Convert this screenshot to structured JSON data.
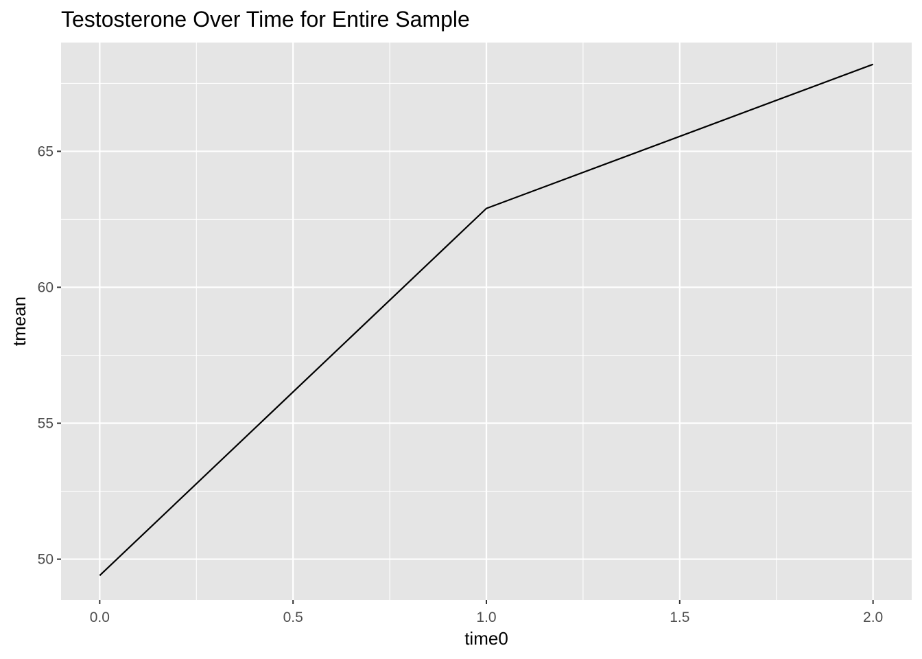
{
  "chart_data": {
    "type": "line",
    "title": "Testosterone Over Time for Entire Sample",
    "xlabel": "time0",
    "ylabel": "tmean",
    "x": [
      0.0,
      1.0,
      2.0
    ],
    "series": [
      {
        "name": "tmean",
        "values": [
          49.4,
          62.9,
          68.2
        ]
      }
    ],
    "xlim": [
      -0.1,
      2.1
    ],
    "ylim": [
      48.5,
      69.0
    ],
    "x_ticks": [
      {
        "value": 0.0,
        "label": "0.0"
      },
      {
        "value": 0.5,
        "label": "0.5"
      },
      {
        "value": 1.0,
        "label": "1.0"
      },
      {
        "value": 1.5,
        "label": "1.5"
      },
      {
        "value": 2.0,
        "label": "2.0"
      }
    ],
    "y_ticks": [
      {
        "value": 50,
        "label": "50"
      },
      {
        "value": 55,
        "label": "55"
      },
      {
        "value": 60,
        "label": "60"
      },
      {
        "value": 65,
        "label": "65"
      }
    ],
    "x_minor": [
      0.25,
      0.75,
      1.25,
      1.75
    ],
    "y_minor": [
      52.5,
      57.5,
      62.5,
      67.5
    ],
    "grid": true,
    "colors": {
      "panel": "#e5e5e5",
      "grid": "#ffffff",
      "line": "#000000",
      "tick": "#333333"
    }
  }
}
